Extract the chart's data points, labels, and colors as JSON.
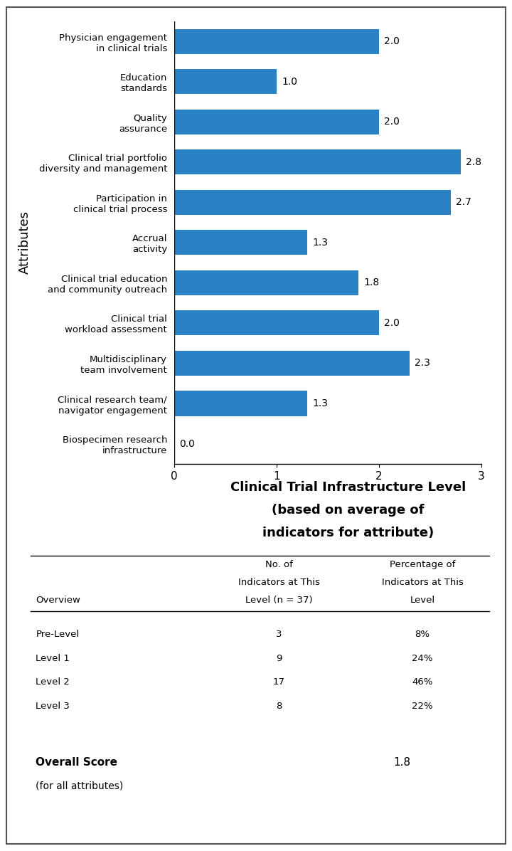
{
  "categories": [
    "Physician engagement\nin clinical trials",
    "Education\nstandards",
    "Quality\nassurance",
    "Clinical trial portfolio\ndiversity and management",
    "Participation in\nclinical trial process",
    "Accrual\nactivity",
    "Clinical trial education\nand community outreach",
    "Clinical trial\nworkload assessment",
    "Multidisciplinary\nteam involvement",
    "Clinical research team/\nnavigator engagement",
    "Biospecimen research\ninfrastructure"
  ],
  "values": [
    2.0,
    1.0,
    2.0,
    2.8,
    2.7,
    1.3,
    1.8,
    2.0,
    2.3,
    1.3,
    0.0
  ],
  "bar_color": "#2a82c4",
  "ylabel": "Attributes",
  "xlim": [
    0,
    3
  ],
  "xticks": [
    0,
    1,
    2,
    3
  ],
  "xlabel_line1": "Clinical Trial Infrastructure Level",
  "xlabel_line2": "(based on average of",
  "xlabel_line3": "indicators for attribute)",
  "table_col1_header_lines": [
    "No. of",
    "Indicators at This",
    "Level (n = 37)"
  ],
  "table_col2_header_lines": [
    "Percentage of",
    "Indicators at This",
    "Level"
  ],
  "table_overview": "Overview",
  "table_rows": [
    [
      "Pre-Level",
      "3",
      "8%"
    ],
    [
      "Level 1",
      "9",
      "24%"
    ],
    [
      "Level 2",
      "17",
      "46%"
    ],
    [
      "Level 3",
      "8",
      "22%"
    ]
  ],
  "overall_score_label": "Overall Score",
  "overall_score_sublabel": "(for all attributes)",
  "overall_score_value": "1.8",
  "bg_color": "#ffffff"
}
